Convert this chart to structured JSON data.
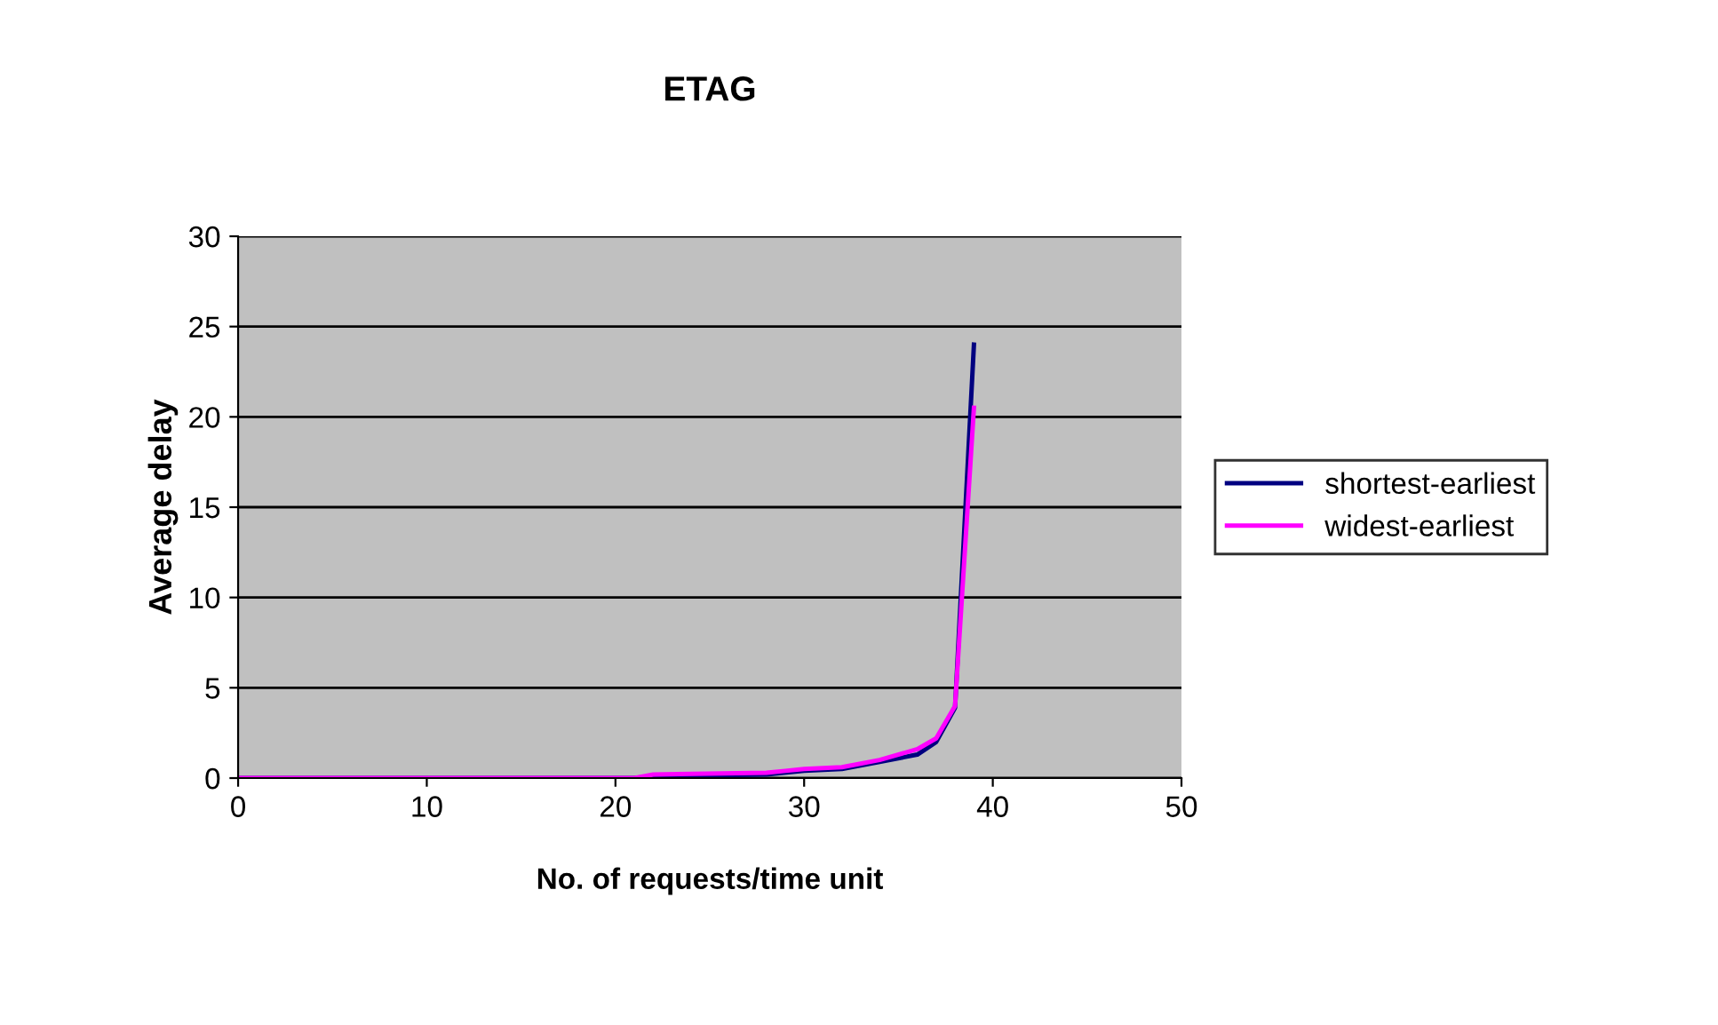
{
  "chart_data": {
    "type": "line",
    "title": "ETAG",
    "xlabel": "No. of requests/time unit",
    "ylabel": "Average delay",
    "xlim": [
      0,
      50
    ],
    "xticks": [
      0,
      10,
      20,
      30,
      40,
      50
    ],
    "ylim": [
      0,
      30
    ],
    "yticks": [
      0,
      5,
      10,
      15,
      20,
      25,
      30
    ],
    "grid": "y",
    "legend": "right",
    "marker": "none",
    "line_style": "solid",
    "series": [
      {
        "name": "shortest-earliest",
        "color": "#000080",
        "x": [
          0,
          21,
          22,
          28,
          30,
          32,
          34,
          36,
          37,
          38,
          39
        ],
        "values": [
          0,
          0,
          0.1,
          0.2,
          0.4,
          0.5,
          0.9,
          1.3,
          2.0,
          3.9,
          24
        ]
      },
      {
        "name": "widest-earliest",
        "color": "#ff00ff",
        "x": [
          0,
          21,
          22,
          28,
          29,
          30,
          32,
          34,
          36,
          37,
          38,
          39
        ],
        "values": [
          0,
          0,
          0.2,
          0.3,
          0.4,
          0.5,
          0.6,
          1.0,
          1.6,
          2.2,
          4.0,
          20.5
        ]
      }
    ]
  }
}
